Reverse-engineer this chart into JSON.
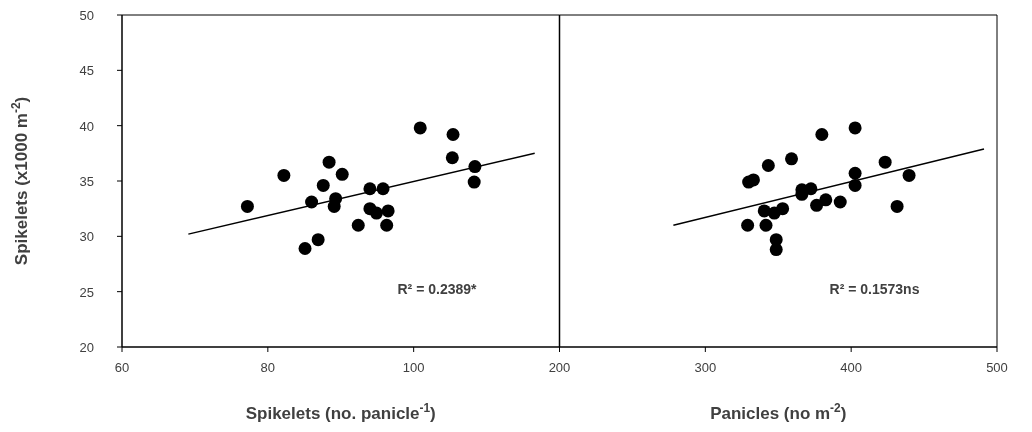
{
  "chart_data": [
    {
      "type": "scatter",
      "xlabel": "Spikelets (no. panicle$^{-1}$)",
      "ylabel": "Spikelets (x1000 m$^{-2}$)",
      "xlim": [
        60,
        120
      ],
      "xticks": [
        60,
        80,
        100,
        {
          "value": 120,
          "label": null
        }
      ],
      "ylim": [
        20,
        50
      ],
      "yticks": [
        20,
        25,
        30,
        35,
        40,
        45,
        50
      ],
      "grid": false,
      "marker": "circle",
      "annotations": [
        "R² = 0.2389*"
      ],
      "series": [
        {
          "color": "#000000",
          "x": [
            77.2,
            82.2,
            88.4,
            90.2,
            87.6,
            86.0,
            89.3,
            89.1,
            86.9,
            85.1,
            92.4,
            94.0,
            95.8,
            94.0,
            94.9,
            96.5,
            96.3,
            100.9,
            105.4,
            105.3,
            108.4,
            108.3
          ],
          "values": [
            32.7,
            35.5,
            36.7,
            35.6,
            34.6,
            33.1,
            33.4,
            32.7,
            29.7,
            28.9,
            31.0,
            34.3,
            34.3,
            32.5,
            32.1,
            32.3,
            31.0,
            39.8,
            39.2,
            37.1,
            36.3,
            34.9
          ]
        },
        {
          "type": "line",
          "color": "#000000",
          "marker": "none",
          "x": [
            69.1,
            116.6
          ],
          "values": [
            30.2,
            37.5
          ]
        }
      ]
    },
    {
      "type": "scatter",
      "xlabel": "Panicles (no m$^{-2}$)",
      "xlim": [
        200,
        500
      ],
      "xticks": [
        200,
        300,
        400,
        500
      ],
      "ylim": [
        20,
        50
      ],
      "tick_labels": "x",
      "grid": false,
      "marker": "circle",
      "annotations": [
        "R² = 0.1573ns"
      ],
      "series": [
        {
          "color": "#000000",
          "x": [
            329.7,
            333,
            343.2,
            359.1,
            379.9,
            402.7,
            423.3,
            439.7,
            402.7,
            402.7,
            431.5,
            366.2,
            372.4,
            366.2,
            382.6,
            392.5,
            376.3,
            340.4,
            353.0,
            347.3,
            329.0,
            341.6,
            348.6,
            348.6
          ],
          "values": [
            34.9,
            35.1,
            36.4,
            37.0,
            39.2,
            39.8,
            36.7,
            35.5,
            35.7,
            34.6,
            32.7,
            34.2,
            34.3,
            33.8,
            33.3,
            33.1,
            32.8,
            32.3,
            32.5,
            32.1,
            31.0,
            31.0,
            29.7,
            28.8
          ]
        },
        {
          "type": "line",
          "color": "#000000",
          "marker": "none",
          "x": [
            278.1,
            491.1
          ],
          "values": [
            31.0,
            37.9
          ]
        }
      ]
    }
  ]
}
